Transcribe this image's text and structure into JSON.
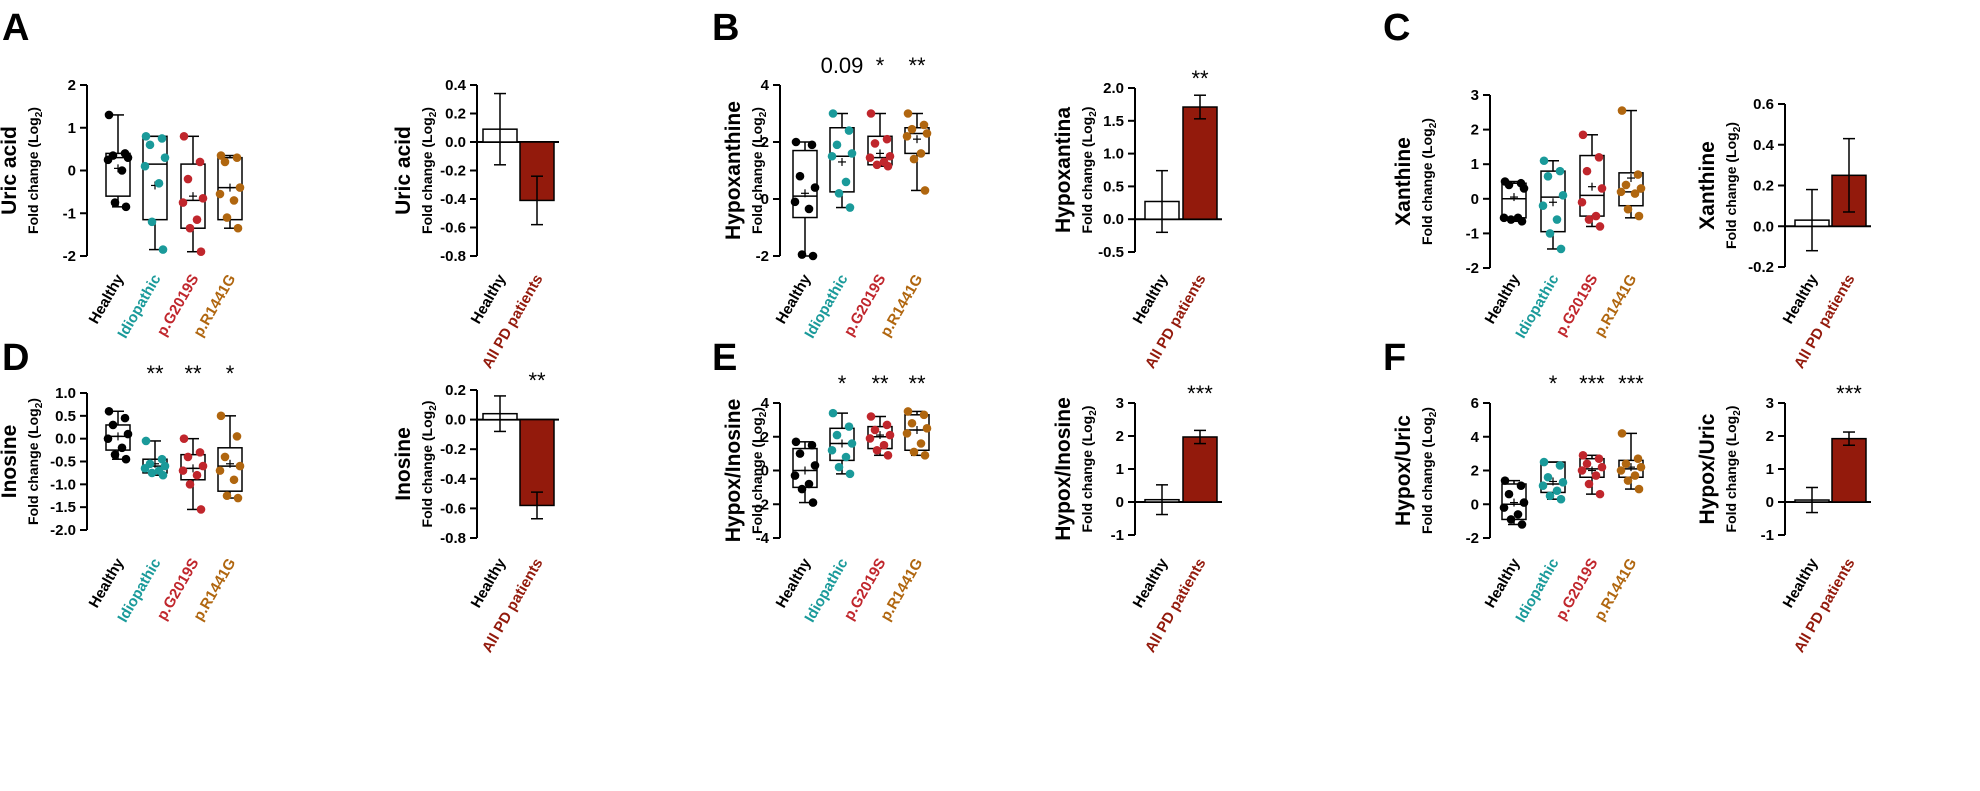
{
  "colors": {
    "healthy": "#000000",
    "idiopathic": "#1a9a9a",
    "g2019s": "#c0262c",
    "r1441g": "#b0660f",
    "pd_bar": "#931a0c"
  },
  "box_categories": [
    "Healthy",
    "Idiopathic",
    "p.G2019S",
    "p.R1441G"
  ],
  "bar_categories": [
    "Healthy",
    "All PD patients"
  ],
  "ylabel_sub": "Fold change (Log",
  "ylabel_sub_subscript": "2",
  "ylabel_sub_close": ")",
  "chart_data": [
    {
      "type": "box",
      "panel_letter": "A",
      "metabolite": "Uric acid",
      "ylim": [
        -2,
        2
      ],
      "yticks": [
        "2",
        "1",
        "0",
        "-1",
        "-2"
      ],
      "ytick_values": [
        2,
        1,
        0,
        -1,
        -2
      ],
      "annotations": [
        "",
        "",
        "",
        ""
      ],
      "series": [
        {
          "name": "Healthy",
          "min": -0.85,
          "q1": -0.6,
          "median": 0.3,
          "mean": 0.05,
          "q3": 0.4,
          "max": 1.3,
          "points": [
            1.3,
            0.4,
            0.35,
            0.3,
            0.25,
            0.0,
            -0.75,
            -0.85
          ]
        },
        {
          "name": "Idiopathic",
          "min": -1.85,
          "q1": -1.15,
          "median": 0.15,
          "mean": -0.35,
          "q3": 0.8,
          "max": 0.8,
          "points": [
            0.8,
            0.75,
            0.6,
            0.3,
            0.1,
            -0.3,
            -1.2,
            -1.85
          ]
        },
        {
          "name": "p.G2019S",
          "min": -1.9,
          "q1": -1.35,
          "median": -0.7,
          "mean": -0.6,
          "q3": 0.15,
          "max": 0.8,
          "points": [
            0.8,
            0.2,
            -0.2,
            -0.65,
            -0.75,
            -1.15,
            -1.35,
            -1.9
          ]
        },
        {
          "name": "p.R1441G",
          "min": -1.35,
          "q1": -1.15,
          "median": -0.4,
          "mean": -0.4,
          "q3": 0.3,
          "max": 0.35,
          "points": [
            0.35,
            0.3,
            0.2,
            -0.4,
            -0.55,
            -0.7,
            -1.1,
            -1.35
          ]
        }
      ]
    },
    {
      "type": "bar",
      "panel_letter": "",
      "metabolite": "Uric acid",
      "ylim": [
        -0.8,
        0.4
      ],
      "yticks": [
        "0.4",
        "0.2",
        "0.0",
        "-0.2",
        "-0.4",
        "-0.6",
        "-0.8"
      ],
      "ytick_values": [
        0.4,
        0.2,
        0.0,
        -0.2,
        -0.4,
        -0.6,
        -0.8
      ],
      "annotation": "",
      "values": [
        0.09,
        -0.41
      ],
      "errors": [
        0.25,
        0.17
      ]
    },
    {
      "type": "box",
      "panel_letter": "B",
      "metabolite": "Hypoxanthine",
      "ylim": [
        -2,
        4
      ],
      "yticks": [
        "4",
        "2",
        "0",
        "-2"
      ],
      "ytick_values": [
        4,
        2,
        0,
        -2
      ],
      "annotations": [
        "",
        "0.09",
        "*",
        "**"
      ],
      "series": [
        {
          "name": "Healthy",
          "min": -2.0,
          "q1": -0.65,
          "median": 0.1,
          "mean": 0.2,
          "q3": 1.7,
          "max": 2.0,
          "points": [
            2.0,
            1.9,
            0.8,
            0.4,
            -0.1,
            -0.35,
            -1.95,
            -2.0
          ]
        },
        {
          "name": "Idiopathic",
          "min": -0.3,
          "q1": 0.25,
          "median": 1.5,
          "mean": 1.3,
          "q3": 2.5,
          "max": 3.0,
          "points": [
            3.0,
            2.4,
            1.9,
            1.6,
            1.5,
            0.6,
            0.2,
            -0.3
          ]
        },
        {
          "name": "p.G2019S",
          "min": 1.15,
          "q1": 1.2,
          "median": 1.45,
          "mean": 1.6,
          "q3": 2.2,
          "max": 3.0,
          "points": [
            3.0,
            2.1,
            1.95,
            1.5,
            1.45,
            1.3,
            1.2,
            1.15
          ]
        },
        {
          "name": "p.R1441G",
          "min": 0.3,
          "q1": 1.6,
          "median": 2.3,
          "mean": 2.1,
          "q3": 2.5,
          "max": 3.0,
          "points": [
            3.0,
            2.6,
            2.45,
            2.3,
            2.2,
            1.6,
            1.4,
            0.3
          ]
        }
      ]
    },
    {
      "type": "bar",
      "panel_letter": "",
      "metabolite": "Hypoxantina",
      "ylim": [
        -0.5,
        2.0
      ],
      "yticks": [
        "2.0",
        "1.5",
        "1.0",
        "0.5",
        "0.0",
        "-0.5"
      ],
      "ytick_values": [
        2.0,
        1.5,
        1.0,
        0.5,
        0.0,
        -0.5
      ],
      "annotation": "**",
      "values": [
        0.27,
        1.71
      ],
      "errors": [
        0.47,
        0.18
      ]
    },
    {
      "type": "box",
      "panel_letter": "C",
      "metabolite": "Xanthine",
      "ylim": [
        -2,
        3
      ],
      "yticks": [
        "3",
        "2",
        "1",
        "0",
        "-1",
        "-2"
      ],
      "ytick_values": [
        3,
        2,
        1,
        0,
        -1,
        -2
      ],
      "annotations": [
        "",
        "",
        "",
        ""
      ],
      "series": [
        {
          "name": "Healthy",
          "min": -0.65,
          "q1": -0.55,
          "median": 0.0,
          "mean": 0.05,
          "q3": 0.45,
          "max": 0.5,
          "points": [
            0.5,
            0.45,
            0.4,
            0.3,
            -0.55,
            -0.55,
            -0.6,
            -0.65
          ]
        },
        {
          "name": "Idiopathic",
          "min": -1.45,
          "q1": -0.95,
          "median": 0.05,
          "mean": -0.1,
          "q3": 0.8,
          "max": 1.1,
          "points": [
            1.1,
            0.8,
            0.65,
            0.1,
            -0.2,
            -0.6,
            -1.0,
            -1.45
          ]
        },
        {
          "name": "p.G2019S",
          "min": -0.8,
          "q1": -0.5,
          "median": 0.1,
          "mean": 0.35,
          "q3": 1.25,
          "max": 1.85,
          "points": [
            1.85,
            1.2,
            0.8,
            0.3,
            -0.1,
            -0.5,
            -0.6,
            -0.8
          ]
        },
        {
          "name": "p.R1441G",
          "min": -0.55,
          "q1": -0.2,
          "median": 0.2,
          "mean": 0.6,
          "q3": 0.75,
          "max": 2.55,
          "points": [
            2.55,
            0.7,
            0.4,
            0.3,
            0.2,
            0.15,
            -0.3,
            -0.5
          ]
        }
      ]
    },
    {
      "type": "bar",
      "panel_letter": "",
      "metabolite": "Xanthine",
      "ylim": [
        -0.2,
        0.6
      ],
      "yticks": [
        "0.6",
        "0.4",
        "0.2",
        "0.0",
        "-0.2"
      ],
      "ytick_values": [
        0.6,
        0.4,
        0.2,
        0.0,
        -0.2
      ],
      "annotation": "",
      "values": [
        0.03,
        0.25
      ],
      "errors": [
        0.15,
        0.18
      ]
    },
    {
      "type": "box",
      "panel_letter": "D",
      "metabolite": "Inosine",
      "ylim": [
        -2.0,
        1.0
      ],
      "yticks": [
        "1.0",
        "0.5",
        "0.0",
        "-0.5",
        "-1.0",
        "-1.5",
        "-2.0"
      ],
      "ytick_values": [
        1.0,
        0.5,
        0.0,
        -0.5,
        -1.0,
        -1.5,
        -2.0
      ],
      "annotations": [
        "",
        "**",
        "**",
        "*"
      ],
      "series": [
        {
          "name": "Healthy",
          "min": -0.45,
          "q1": -0.25,
          "median": 0.05,
          "mean": 0.05,
          "q3": 0.3,
          "max": 0.6,
          "points": [
            0.6,
            0.45,
            0.3,
            0.1,
            0.0,
            -0.2,
            -0.35,
            -0.45
          ]
        },
        {
          "name": "Idiopathic",
          "min": -0.8,
          "q1": -0.75,
          "median": -0.6,
          "mean": -0.55,
          "q3": -0.45,
          "max": -0.05,
          "points": [
            -0.05,
            -0.45,
            -0.55,
            -0.6,
            -0.65,
            -0.7,
            -0.75,
            -0.8
          ]
        },
        {
          "name": "p.G2019S",
          "min": -1.55,
          "q1": -0.9,
          "median": -0.65,
          "mean": -0.65,
          "q3": -0.35,
          "max": 0.0,
          "points": [
            0.0,
            -0.3,
            -0.4,
            -0.6,
            -0.7,
            -0.8,
            -1.0,
            -1.55
          ]
        },
        {
          "name": "p.R1441G",
          "min": -1.3,
          "q1": -1.15,
          "median": -0.6,
          "mean": -0.55,
          "q3": -0.2,
          "max": 0.5,
          "points": [
            0.5,
            0.05,
            -0.4,
            -0.6,
            -0.7,
            -0.9,
            -1.25,
            -1.3
          ]
        }
      ]
    },
    {
      "type": "bar",
      "panel_letter": "",
      "metabolite": "Inosine",
      "ylim": [
        -0.8,
        0.2
      ],
      "yticks": [
        "0.2",
        "0.0",
        "-0.2",
        "-0.4",
        "-0.6",
        "-0.8"
      ],
      "ytick_values": [
        0.2,
        0.0,
        -0.2,
        -0.4,
        -0.6,
        -0.8
      ],
      "annotation": "**",
      "values": [
        0.04,
        -0.58
      ],
      "errors": [
        0.12,
        0.09
      ]
    },
    {
      "type": "box",
      "panel_letter": "E",
      "metabolite": "Hypox/Inosine",
      "ylim": [
        -4,
        4
      ],
      "yticks": [
        "4",
        "2",
        "0",
        "-2",
        "-4"
      ],
      "ytick_values": [
        4,
        2,
        0,
        -2,
        -4
      ],
      "annotations": [
        "",
        "*",
        "**",
        "**"
      ],
      "series": [
        {
          "name": "Healthy",
          "min": -1.9,
          "q1": -1.0,
          "median": 0.0,
          "mean": 0.0,
          "q3": 1.3,
          "max": 1.7,
          "points": [
            1.7,
            1.5,
            1.0,
            0.3,
            -0.3,
            -0.8,
            -1.1,
            -1.9
          ]
        },
        {
          "name": "Idiopathic",
          "min": -0.2,
          "q1": 0.6,
          "median": 1.6,
          "mean": 1.6,
          "q3": 2.5,
          "max": 3.4,
          "points": [
            3.4,
            2.6,
            2.1,
            1.6,
            1.2,
            0.8,
            0.2,
            -0.2
          ]
        },
        {
          "name": "p.G2019S",
          "min": 0.9,
          "q1": 1.3,
          "median": 2.0,
          "mean": 2.1,
          "q3": 2.6,
          "max": 3.2,
          "points": [
            3.2,
            2.7,
            2.4,
            2.1,
            1.9,
            1.5,
            1.2,
            0.9
          ]
        },
        {
          "name": "p.R1441G",
          "min": 0.9,
          "q1": 1.2,
          "median": 2.4,
          "mean": 2.4,
          "q3": 3.3,
          "max": 3.5,
          "points": [
            3.5,
            3.3,
            2.8,
            2.5,
            2.2,
            1.6,
            1.1,
            0.9
          ]
        }
      ]
    },
    {
      "type": "bar",
      "panel_letter": "",
      "metabolite": "Hypox/Inosine",
      "ylim": [
        -1,
        3
      ],
      "yticks": [
        "3",
        "2",
        "1",
        "0",
        "-1"
      ],
      "ytick_values": [
        3,
        2,
        1,
        0,
        -1
      ],
      "annotation": "***",
      "values": [
        0.07,
        1.97
      ],
      "errors": [
        0.45,
        0.2
      ]
    },
    {
      "type": "box",
      "panel_letter": "F",
      "metabolite": "Hypox/Uric",
      "ylim": [
        -2,
        6
      ],
      "yticks": [
        "6",
        "4",
        "2",
        "0",
        "-2"
      ],
      "ytick_values": [
        6,
        4,
        2,
        0,
        -2
      ],
      "annotations": [
        "",
        "*",
        "***",
        "***"
      ],
      "series": [
        {
          "name": "Healthy",
          "min": -1.2,
          "q1": -0.9,
          "median": 0.0,
          "mean": 0.1,
          "q3": 1.2,
          "max": 1.4,
          "points": [
            1.4,
            1.1,
            0.6,
            0.1,
            -0.2,
            -0.6,
            -0.9,
            -1.2
          ]
        },
        {
          "name": "Idiopathic",
          "min": 0.3,
          "q1": 0.7,
          "median": 1.2,
          "mean": 1.35,
          "q3": 2.5,
          "max": 2.5,
          "points": [
            2.5,
            2.3,
            1.6,
            1.3,
            1.1,
            0.8,
            0.5,
            0.3
          ]
        },
        {
          "name": "p.G2019S",
          "min": 0.6,
          "q1": 1.6,
          "median": 2.1,
          "mean": 2.0,
          "q3": 2.7,
          "max": 2.9,
          "points": [
            2.9,
            2.7,
            2.4,
            2.2,
            2.0,
            1.7,
            1.2,
            0.6
          ]
        },
        {
          "name": "p.R1441G",
          "min": 0.9,
          "q1": 1.6,
          "median": 2.1,
          "mean": 2.2,
          "q3": 2.6,
          "max": 4.2,
          "points": [
            4.2,
            2.7,
            2.4,
            2.2,
            2.0,
            1.7,
            1.4,
            0.9
          ]
        }
      ]
    },
    {
      "type": "bar",
      "panel_letter": "",
      "metabolite": "Hypox/Uric",
      "ylim": [
        -1,
        3
      ],
      "yticks": [
        "3",
        "2",
        "1",
        "0",
        "-1"
      ],
      "ytick_values": [
        3,
        2,
        1,
        0,
        -1
      ],
      "annotation": "***",
      "values": [
        0.06,
        1.92
      ],
      "errors": [
        0.38,
        0.2
      ]
    }
  ]
}
